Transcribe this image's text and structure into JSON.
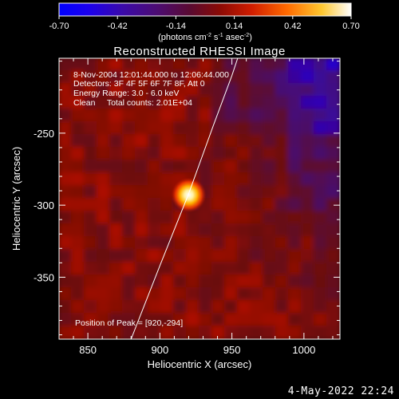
{
  "chart_data": {
    "type": "heatmap",
    "title": "Reconstructed RHESSI Image",
    "xlabel": "Heliocentric X (arcsec)",
    "ylabel": "Heliocentric Y (arcsec)",
    "xlim": [
      830,
      1025
    ],
    "ylim": [
      -393,
      -198
    ],
    "xticks": [
      "850",
      "900",
      "950",
      "1000"
    ],
    "xtick_values": [
      850,
      900,
      950,
      1000
    ],
    "yticks": [
      "-250",
      "-300",
      "-350"
    ],
    "ytick_values": [
      -250,
      -300,
      -350
    ],
    "colorbar": {
      "range": [
        -0.7,
        0.7
      ],
      "ticks": [
        "-0.70",
        "-0.42",
        "-0.14",
        "0.14",
        "0.42",
        "0.70"
      ],
      "tick_values": [
        -0.7,
        -0.42,
        -0.14,
        0.14,
        0.42,
        0.7
      ],
      "label_html": "(photons cm<tspan dy='-4' font-size='7'>-2</tspan><tspan dy='4'> s</tspan><tspan dy='-4' font-size='7'>-1</tspan><tspan dy='4'> asec</tspan><tspan dy='-4' font-size='7'>-2</tspan><tspan dy='4'>)</tspan>"
    },
    "annotations": [
      "8-Nov-2004 12:01:44.000 to 12:06:44.000",
      "Detectors: 3F 4F 5F 6F 7F 8F, Att 0",
      "Energy Range: 3.0 - 6.0 keV",
      "Clean     Total counts: 2.01E+04"
    ],
    "peak_label": "Position of Peak = [920,-294]",
    "peak": {
      "x": 920,
      "y": -294,
      "value": 0.7
    },
    "limb_curve": [
      [
        880,
        -393
      ],
      [
        900,
        -342
      ],
      [
        920,
        -292
      ],
      [
        937,
        -245
      ],
      [
        950,
        -210
      ],
      [
        954,
        -198
      ]
    ],
    "colors": {
      "background": "#000000",
      "axes": "#ffffff"
    }
  },
  "footer": {
    "date": "4-May-2022 22:24"
  }
}
